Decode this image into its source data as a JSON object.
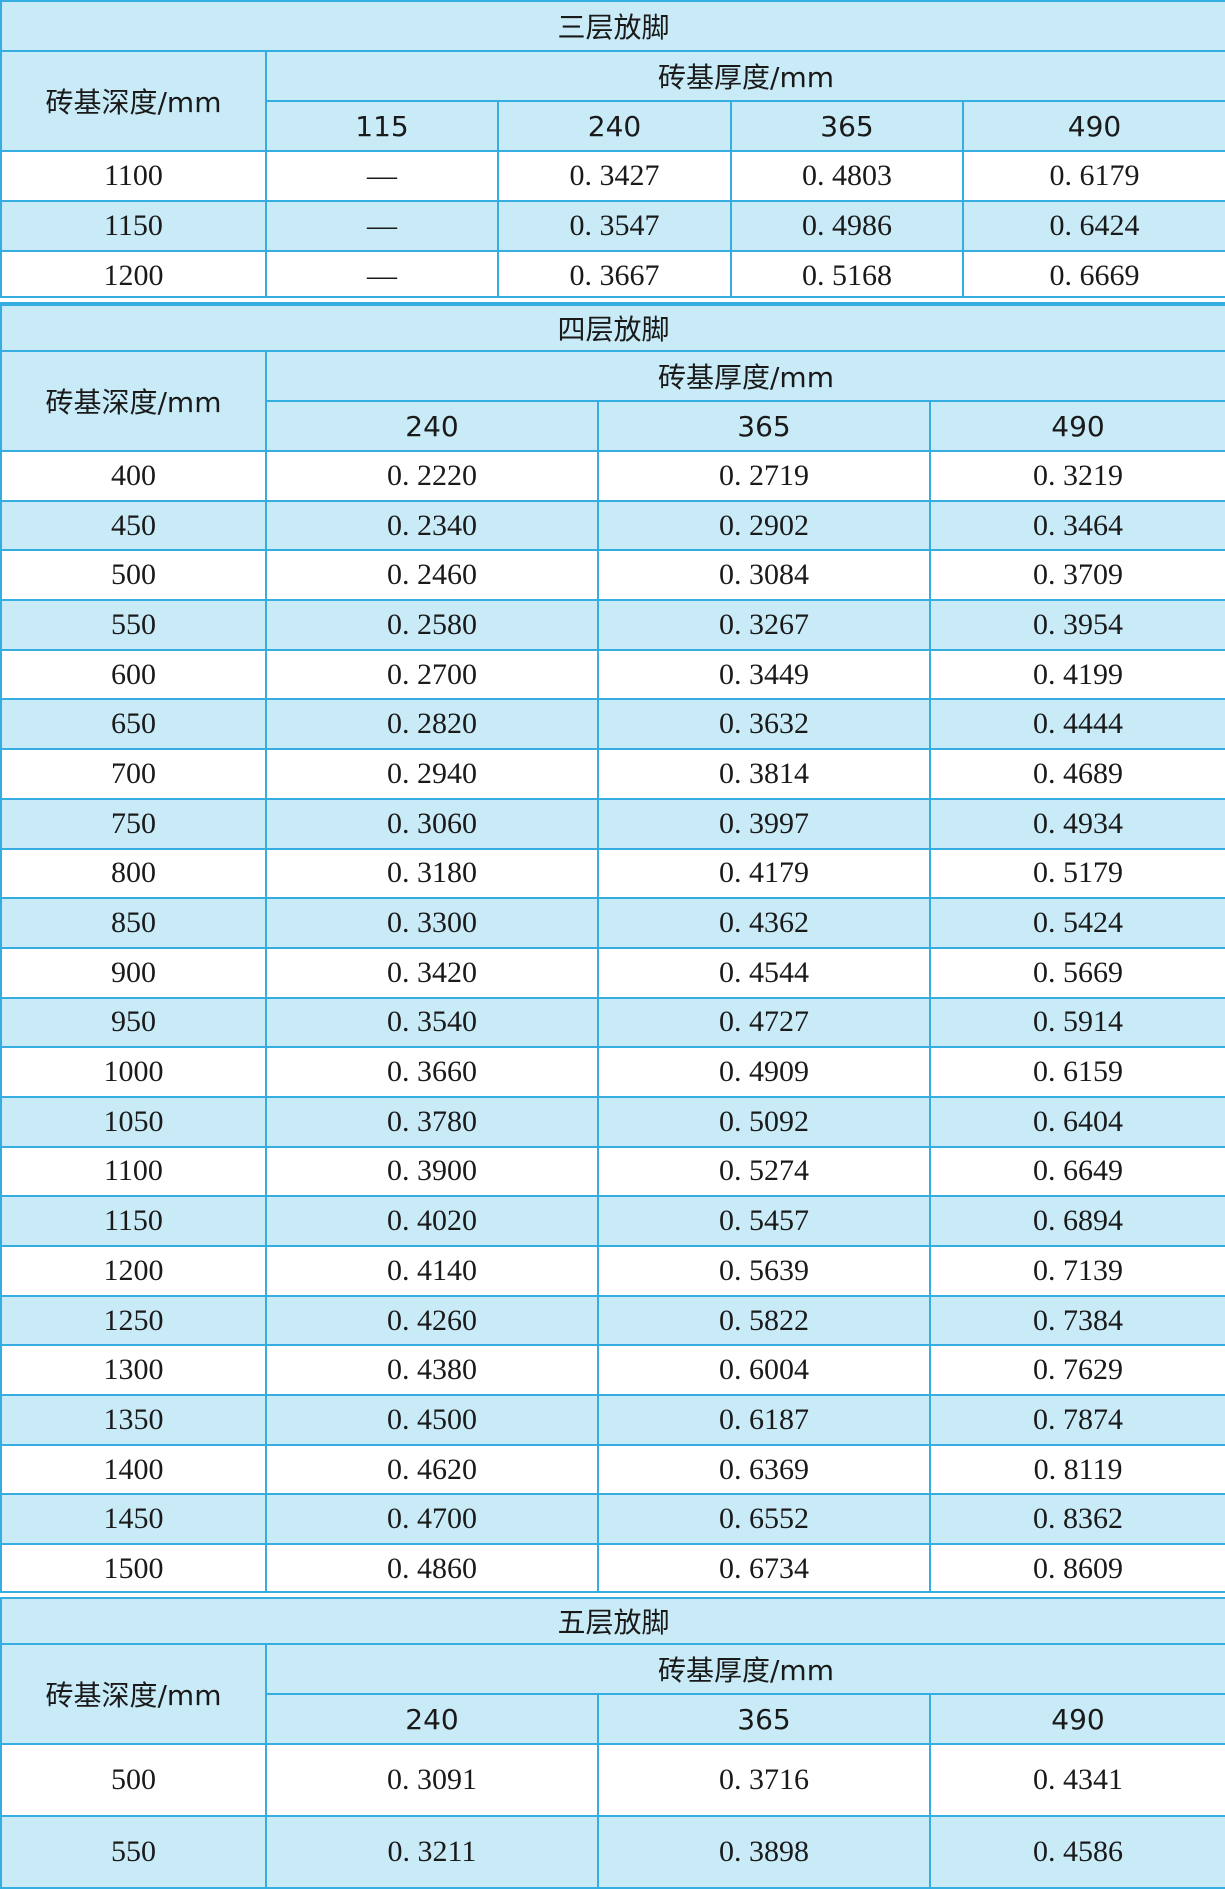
{
  "sections": [
    {
      "title": "三层放脚",
      "row_header": "砖基深度/mm",
      "col_header": "砖基厚度/mm",
      "columns": [
        "115",
        "240",
        "365",
        "490"
      ],
      "rows": [
        [
          "1100",
          "—",
          "0. 3427",
          "0. 4803",
          "0. 6179"
        ],
        [
          "1150",
          "—",
          "0. 3547",
          "0. 4986",
          "0. 6424"
        ],
        [
          "1200",
          "—",
          "0. 3667",
          "0. 5168",
          "0. 6669"
        ]
      ]
    },
    {
      "title": "四层放脚",
      "row_header": "砖基深度/mm",
      "col_header": "砖基厚度/mm",
      "columns": [
        "240",
        "365",
        "490"
      ],
      "rows": [
        [
          "400",
          "0. 2220",
          "0. 2719",
          "0. 3219"
        ],
        [
          "450",
          "0. 2340",
          "0. 2902",
          "0. 3464"
        ],
        [
          "500",
          "0. 2460",
          "0. 3084",
          "0. 3709"
        ],
        [
          "550",
          "0. 2580",
          "0. 3267",
          "0. 3954"
        ],
        [
          "600",
          "0. 2700",
          "0. 3449",
          "0. 4199"
        ],
        [
          "650",
          "0. 2820",
          "0. 3632",
          "0. 4444"
        ],
        [
          "700",
          "0. 2940",
          "0. 3814",
          "0. 4689"
        ],
        [
          "750",
          "0. 3060",
          "0. 3997",
          "0. 4934"
        ],
        [
          "800",
          "0. 3180",
          "0. 4179",
          "0. 5179"
        ],
        [
          "850",
          "0. 3300",
          "0. 4362",
          "0. 5424"
        ],
        [
          "900",
          "0. 3420",
          "0. 4544",
          "0. 5669"
        ],
        [
          "950",
          "0. 3540",
          "0. 4727",
          "0. 5914"
        ],
        [
          "1000",
          "0. 3660",
          "0. 4909",
          "0. 6159"
        ],
        [
          "1050",
          "0. 3780",
          "0. 5092",
          "0. 6404"
        ],
        [
          "1100",
          "0. 3900",
          "0. 5274",
          "0. 6649"
        ],
        [
          "1150",
          "0. 4020",
          "0. 5457",
          "0. 6894"
        ],
        [
          "1200",
          "0. 4140",
          "0. 5639",
          "0. 7139"
        ],
        [
          "1250",
          "0. 4260",
          "0. 5822",
          "0. 7384"
        ],
        [
          "1300",
          "0. 4380",
          "0. 6004",
          "0. 7629"
        ],
        [
          "1350",
          "0. 4500",
          "0. 6187",
          "0. 7874"
        ],
        [
          "1400",
          "0. 4620",
          "0. 6369",
          "0. 8119"
        ],
        [
          "1450",
          "0. 4700",
          "0. 6552",
          "0. 8362"
        ],
        [
          "1500",
          "0. 4860",
          "0. 6734",
          "0. 8609"
        ]
      ]
    },
    {
      "title": "五层放脚",
      "row_header": "砖基深度/mm",
      "col_header": "砖基厚度/mm",
      "columns": [
        "240",
        "365",
        "490"
      ],
      "rows": [
        [
          "500",
          "0. 3091",
          "0. 3716",
          "0. 4341"
        ],
        [
          "550",
          "0. 3211",
          "0. 3898",
          "0. 4586"
        ]
      ]
    }
  ]
}
